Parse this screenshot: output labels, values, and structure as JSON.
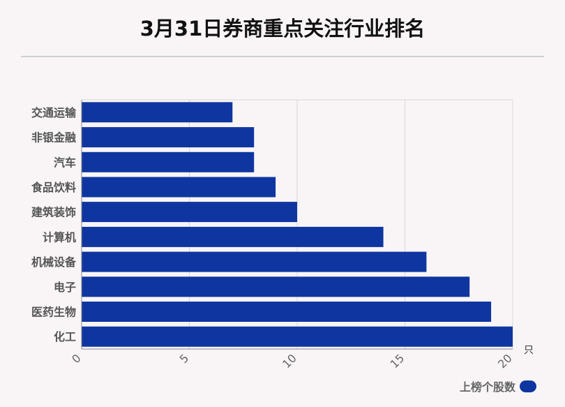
{
  "title": "3月31日券商重点关注行业排名",
  "chart_data": {
    "type": "bar",
    "orientation": "horizontal",
    "title": "3月31日券商重点关注行业排名",
    "categories": [
      "交通运输",
      "非银金融",
      "汽车",
      "食品饮料",
      "建筑装饰",
      "计算机",
      "机械设备",
      "电子",
      "医药生物",
      "化工"
    ],
    "series": [
      {
        "name": "上榜个股数",
        "values": [
          7,
          8,
          8,
          9,
          10,
          14,
          16,
          18,
          19,
          20
        ]
      }
    ],
    "xlim": [
      0,
      20
    ],
    "xticks": [
      "0",
      "5",
      "10",
      "15",
      "20"
    ],
    "xunit": "只",
    "grid": true,
    "legend_position": "bottom-right",
    "bar_color": "#0f36a0"
  }
}
